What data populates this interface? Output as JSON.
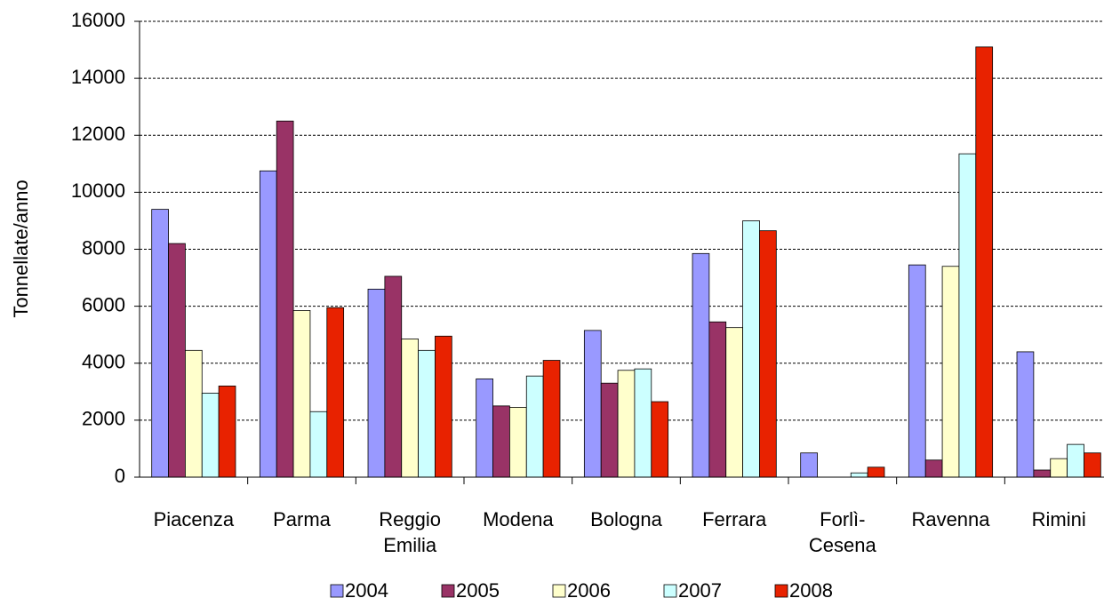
{
  "chart_data": {
    "type": "bar",
    "y_label": "Tonnellate/anno",
    "categories": [
      "Piacenza",
      "Parma",
      "Reggio\nEmilia",
      "Modena",
      "Bologna",
      "Ferrara",
      "Forlì-\nCesena",
      "Ravenna",
      "Rimini"
    ],
    "series": [
      {
        "name": "2004",
        "color": "#9999ff",
        "values": [
          9400,
          10750,
          6600,
          3450,
          5150,
          7850,
          850,
          7450,
          4400
        ]
      },
      {
        "name": "2005",
        "color": "#993366",
        "values": [
          8200,
          12500,
          7050,
          2500,
          3300,
          5450,
          0,
          600,
          250
        ]
      },
      {
        "name": "2006",
        "color": "#ffffcc",
        "values": [
          4450,
          5850,
          4850,
          2450,
          3750,
          5250,
          0,
          7400,
          650
        ]
      },
      {
        "name": "2007",
        "color": "#ccffff",
        "values": [
          2950,
          2300,
          4450,
          3550,
          3800,
          9000,
          150,
          11350,
          1150
        ]
      },
      {
        "name": "2008",
        "color": "#e82200",
        "values": [
          3200,
          5950,
          4950,
          4100,
          2650,
          8650,
          350,
          15100,
          850
        ]
      }
    ],
    "ylim": [
      0,
      16000
    ],
    "yticks": [
      0,
      2000,
      4000,
      6000,
      8000,
      10000,
      12000,
      14000,
      16000
    ],
    "grid": true
  }
}
